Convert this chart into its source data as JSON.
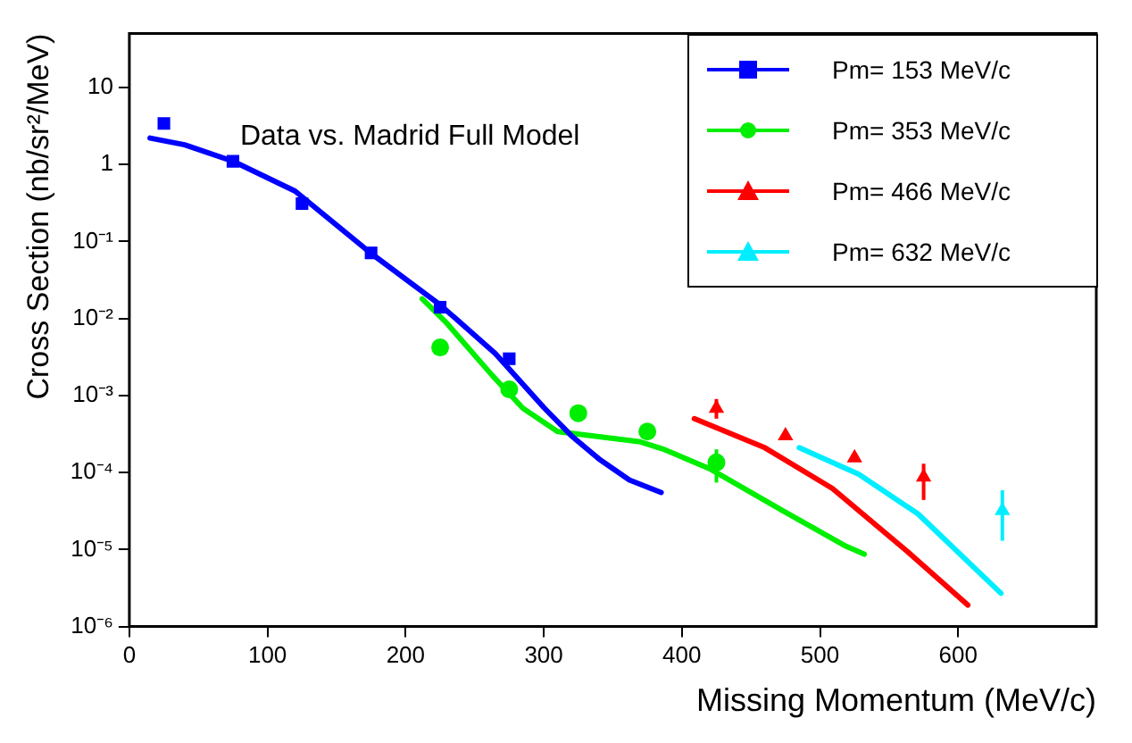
{
  "chart_data": {
    "type": "scatter",
    "xlabel": "Missing Momentum (MeV/c)",
    "ylabel": "Cross Section (nb/sr²/MeV)",
    "annotations": [
      "Data vs. Madrid Full Model"
    ],
    "log": "y",
    "grid": false,
    "legend": "top right",
    "xlim": [
      0,
      700
    ],
    "xticks": [
      0,
      100,
      200,
      300,
      400,
      500,
      600
    ],
    "ylim": [
      1e-06,
      50
    ],
    "yticks": [
      {
        "value": 1e-06,
        "label": "10⁻⁶"
      },
      {
        "value": 1e-05,
        "label": "10⁻⁵"
      },
      {
        "value": 0.0001,
        "label": "10⁻⁴"
      },
      {
        "value": 0.001,
        "label": "10⁻³"
      },
      {
        "value": 0.01,
        "label": "10⁻²"
      },
      {
        "value": 0.1,
        "label": "10⁻¹"
      },
      1,
      10
    ],
    "series": [
      {
        "name": "Pm= 153 MeV/c",
        "type": "scatter",
        "marker": "square",
        "color": "#0000ff",
        "x": [
          25,
          75,
          125,
          175,
          225,
          275
        ],
        "values": [
          3.4,
          1.1,
          0.31,
          0.071,
          0.014,
          0.003
        ]
      },
      {
        "name": "Pm= 353 MeV/c",
        "type": "scatter",
        "marker": "circle",
        "color": "#00ee00",
        "x": [
          225,
          275,
          325,
          375,
          425
        ],
        "values": [
          0.0042,
          0.0012,
          0.00059,
          0.00034,
          0.000135
        ],
        "errors": [
          null,
          null,
          null,
          null,
          [
            7.4e-05,
            0.0002
          ]
        ]
      },
      {
        "name": "Pm= 466 MeV/c",
        "type": "scatter",
        "marker": "triangle",
        "color": "#ff0000",
        "x": [
          425,
          475,
          525,
          575
        ],
        "values": [
          0.00068,
          0.0003,
          0.000155,
          8.7e-05
        ],
        "errors": [
          [
            0.0005,
            0.0009
          ],
          null,
          null,
          [
            4.4e-05,
            0.00013
          ]
        ]
      },
      {
        "name": "Pm= 632 MeV/c",
        "type": "scatter",
        "marker": "triangle",
        "color": "#00eeff",
        "x": [
          632
        ],
        "values": [
          3.2e-05
        ],
        "errors": [
          [
            1.3e-05,
            5.9e-05
          ]
        ]
      },
      {
        "type": "line",
        "marker": "none",
        "color": "#0000ff",
        "x": [
          15,
          40,
          75,
          120,
          175,
          225,
          265,
          300,
          320,
          340,
          362,
          385
        ],
        "values": [
          2.2,
          1.8,
          1.1,
          0.45,
          0.07,
          0.015,
          0.0035,
          0.0007,
          0.0003,
          0.00015,
          8e-05,
          5.5e-05
        ]
      },
      {
        "type": "line",
        "marker": "none",
        "color": "#00ee00",
        "x": [
          212,
          229,
          263,
          285,
          310,
          370,
          387,
          421,
          473,
          519,
          532
        ],
        "values": [
          0.018,
          0.009,
          0.0018,
          0.00068,
          0.00034,
          0.00025,
          0.0002,
          0.00011,
          3.2e-05,
          1.1e-05,
          8.7e-06
        ]
      },
      {
        "type": "line",
        "marker": "none",
        "color": "#ff0000",
        "x": [
          409,
          460,
          509,
          563,
          607
        ],
        "values": [
          0.0005,
          0.00021,
          6.2e-05,
          9.5e-06,
          1.9e-06
        ]
      },
      {
        "type": "line",
        "marker": "none",
        "color": "#00eeff",
        "x": [
          485,
          528,
          571,
          631
        ],
        "values": [
          0.00021,
          9.5e-05,
          2.9e-05,
          2.7e-06
        ]
      }
    ]
  }
}
